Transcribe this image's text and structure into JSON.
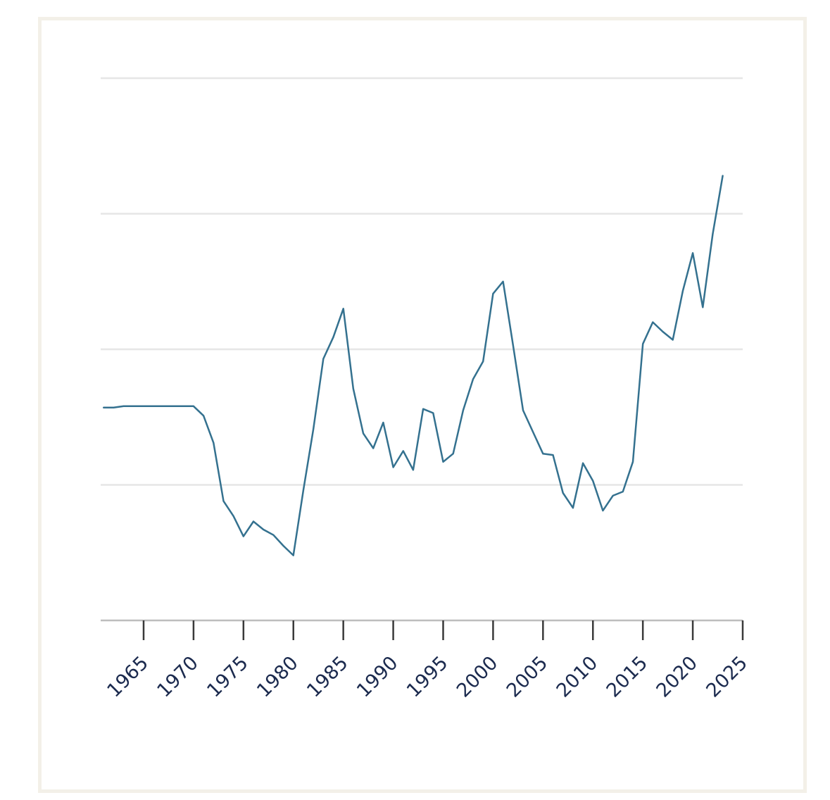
{
  "chart_data": {
    "type": "line",
    "title": "",
    "xlabel": "",
    "ylabel": "",
    "xlim": [
      1960.7,
      2025
    ],
    "ylim": [
      0,
      4
    ],
    "grid": true,
    "x_ticks": [
      1965,
      1970,
      1975,
      1980,
      1985,
      1990,
      1995,
      2000,
      2005,
      2010,
      2015,
      2020,
      2025
    ],
    "y_ticks": [
      0,
      1,
      2,
      3,
      4
    ],
    "x_tick_labels": [
      "1965",
      "1970",
      "1975",
      "1980",
      "1985",
      "1990",
      "1995",
      "2000",
      "2005",
      "2010",
      "2015",
      "2020",
      "2025"
    ],
    "colors": {
      "line": "#34718f",
      "grid": "#e6e6e6",
      "axis": "#bdbdbd",
      "tick": "#3a3a3a",
      "tick_label": "#1b2a4e",
      "frame": "#f3f0e8"
    },
    "series": [
      {
        "x": [
          1961,
          1962,
          1963,
          1964,
          1965,
          1966,
          1967,
          1968,
          1969,
          1970,
          1971,
          1972,
          1973,
          1974,
          1975,
          1976,
          1977,
          1978,
          1979,
          1980,
          1981,
          1982,
          1983,
          1984,
          1985,
          1986,
          1987,
          1988,
          1989,
          1990,
          1991,
          1992,
          1993,
          1994,
          1995,
          1996,
          1997,
          1998,
          1999,
          2000,
          2001,
          2002,
          2003,
          2004,
          2005,
          2006,
          2007,
          2008,
          2009,
          2010,
          2011,
          2012,
          2013,
          2014,
          2015,
          2016,
          2017,
          2018,
          2019,
          2020,
          2021,
          2022,
          2023
        ],
        "values": [
          1.57,
          1.57,
          1.58,
          1.58,
          1.58,
          1.58,
          1.58,
          1.58,
          1.58,
          1.58,
          1.51,
          1.31,
          0.88,
          0.77,
          0.62,
          0.73,
          0.67,
          0.63,
          0.55,
          0.48,
          0.96,
          1.41,
          1.93,
          2.09,
          2.3,
          1.71,
          1.38,
          1.27,
          1.46,
          1.13,
          1.25,
          1.11,
          1.56,
          1.53,
          1.17,
          1.23,
          1.55,
          1.78,
          1.91,
          2.41,
          2.5,
          2.03,
          1.55,
          1.39,
          1.23,
          1.22,
          0.94,
          0.83,
          1.16,
          1.03,
          0.81,
          0.92,
          0.95,
          1.17,
          2.04,
          2.2,
          2.13,
          2.07,
          2.43,
          2.71,
          2.31,
          2.85,
          3.28
        ]
      }
    ]
  }
}
